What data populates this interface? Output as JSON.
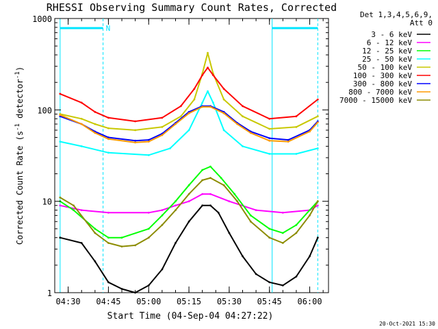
{
  "chart_data": {
    "type": "line",
    "title": "RHESSI Observing Summary Count Rates, Corrected",
    "xlabel": "Start Time (04-Sep-04 04:27:22)",
    "ylabel": "Corrected Count Rate (s",
    "ylabel_mid": " detector",
    "ylabel_end": ")",
    "ylabel_sup": "-1",
    "y_scale": "log",
    "ylim": [
      1,
      1000
    ],
    "xlim": [
      "04:25",
      "06:07"
    ],
    "x_ticks": [
      "04:30",
      "04:45",
      "05:00",
      "05:15",
      "05:30",
      "05:45",
      "06:00"
    ],
    "y_ticks": [
      "1",
      "10",
      "100",
      "1000"
    ],
    "legend_header_1": "Det 1,3,4,5,6,9,",
    "legend_header_2": "Att 0",
    "flag_label": "N",
    "vertical_markers": [
      "04:27",
      "04:43",
      "05:46",
      "06:03"
    ],
    "footer_date": "20-Oct-2021 15:30",
    "series": [
      {
        "name": "3 - 6 keV",
        "color": "#000000",
        "points": [
          [
            "04:27",
            4
          ],
          [
            "04:35",
            3.5
          ],
          [
            "04:40",
            2.2
          ],
          [
            "04:45",
            1.3
          ],
          [
            "04:50",
            1.1
          ],
          [
            "04:55",
            1
          ],
          [
            "05:00",
            1.2
          ],
          [
            "05:05",
            1.8
          ],
          [
            "05:10",
            3.5
          ],
          [
            "05:15",
            6
          ],
          [
            "05:20",
            9
          ],
          [
            "05:23",
            9
          ],
          [
            "05:26",
            7.5
          ],
          [
            "05:30",
            4.5
          ],
          [
            "05:35",
            2.5
          ],
          [
            "05:40",
            1.6
          ],
          [
            "05:45",
            1.3
          ],
          [
            "05:50",
            1.2
          ],
          [
            "05:55",
            1.5
          ],
          [
            "06:00",
            2.5
          ],
          [
            "06:03",
            4
          ]
        ]
      },
      {
        "name": "6 - 12 keV",
        "color": "#ff00ff",
        "points": [
          [
            "04:27",
            9
          ],
          [
            "04:35",
            8
          ],
          [
            "04:45",
            7.5
          ],
          [
            "05:00",
            7.5
          ],
          [
            "05:05",
            8
          ],
          [
            "05:10",
            9
          ],
          [
            "05:15",
            10
          ],
          [
            "05:20",
            12
          ],
          [
            "05:23",
            12
          ],
          [
            "05:30",
            10
          ],
          [
            "05:40",
            8
          ],
          [
            "05:50",
            7.5
          ],
          [
            "06:00",
            8
          ],
          [
            "06:03",
            9
          ]
        ]
      },
      {
        "name": "12 - 25 keV",
        "color": "#00ff00",
        "points": [
          [
            "04:27",
            10
          ],
          [
            "04:32",
            8
          ],
          [
            "04:40",
            5
          ],
          [
            "04:45",
            4
          ],
          [
            "04:50",
            4
          ],
          [
            "05:00",
            5
          ],
          [
            "05:05",
            7
          ],
          [
            "05:10",
            10
          ],
          [
            "05:15",
            15
          ],
          [
            "05:20",
            22
          ],
          [
            "05:23",
            24
          ],
          [
            "05:27",
            18
          ],
          [
            "05:32",
            12
          ],
          [
            "05:38",
            7
          ],
          [
            "05:45",
            5
          ],
          [
            "05:50",
            4.5
          ],
          [
            "05:55",
            5.5
          ],
          [
            "06:00",
            8
          ],
          [
            "06:03",
            10
          ]
        ]
      },
      {
        "name": "25 - 50 keV",
        "color": "#00ffff",
        "points": [
          [
            "04:27",
            45
          ],
          [
            "04:35",
            40
          ],
          [
            "04:45",
            34
          ],
          [
            "05:00",
            32
          ],
          [
            "05:08",
            38
          ],
          [
            "05:15",
            60
          ],
          [
            "05:20",
            120
          ],
          [
            "05:22",
            160
          ],
          [
            "05:24",
            120
          ],
          [
            "05:28",
            60
          ],
          [
            "05:35",
            40
          ],
          [
            "05:45",
            33
          ],
          [
            "05:55",
            33
          ],
          [
            "06:03",
            38
          ]
        ]
      },
      {
        "name": "50 - 100 keV",
        "color": "#c8c800",
        "points": [
          [
            "04:27",
            90
          ],
          [
            "04:35",
            80
          ],
          [
            "04:40",
            70
          ],
          [
            "04:45",
            63
          ],
          [
            "04:55",
            60
          ],
          [
            "05:05",
            65
          ],
          [
            "05:12",
            85
          ],
          [
            "05:17",
            130
          ],
          [
            "05:20",
            250
          ],
          [
            "05:22",
            420
          ],
          [
            "05:24",
            250
          ],
          [
            "05:28",
            130
          ],
          [
            "05:35",
            85
          ],
          [
            "05:45",
            62
          ],
          [
            "05:55",
            65
          ],
          [
            "06:03",
            85
          ]
        ]
      },
      {
        "name": "100 - 300 keV",
        "color": "#ff0000",
        "points": [
          [
            "04:27",
            150
          ],
          [
            "04:35",
            120
          ],
          [
            "04:40",
            95
          ],
          [
            "04:45",
            82
          ],
          [
            "04:55",
            75
          ],
          [
            "05:05",
            82
          ],
          [
            "05:12",
            110
          ],
          [
            "05:17",
            170
          ],
          [
            "05:20",
            240
          ],
          [
            "05:22",
            290
          ],
          [
            "05:24",
            240
          ],
          [
            "05:28",
            170
          ],
          [
            "05:35",
            110
          ],
          [
            "05:45",
            80
          ],
          [
            "05:55",
            85
          ],
          [
            "06:03",
            130
          ]
        ]
      },
      {
        "name": "300 - 800 keV",
        "color": "#0000ff",
        "points": [
          [
            "04:27",
            85
          ],
          [
            "04:35",
            70
          ],
          [
            "04:40",
            58
          ],
          [
            "04:45",
            50
          ],
          [
            "04:55",
            46
          ],
          [
            "05:00",
            47
          ],
          [
            "05:05",
            55
          ],
          [
            "05:10",
            72
          ],
          [
            "05:15",
            95
          ],
          [
            "05:20",
            110
          ],
          [
            "05:23",
            110
          ],
          [
            "05:28",
            95
          ],
          [
            "05:33",
            72
          ],
          [
            "05:38",
            58
          ],
          [
            "05:45",
            49
          ],
          [
            "05:52",
            47
          ],
          [
            "06:00",
            60
          ],
          [
            "06:03",
            75
          ]
        ]
      },
      {
        "name": "800 - 7000 keV",
        "color": "#ff9900",
        "points": [
          [
            "04:27",
            88
          ],
          [
            "04:35",
            70
          ],
          [
            "04:40",
            56
          ],
          [
            "04:45",
            48
          ],
          [
            "04:55",
            44
          ],
          [
            "05:00",
            45
          ],
          [
            "05:05",
            53
          ],
          [
            "05:10",
            70
          ],
          [
            "05:15",
            92
          ],
          [
            "05:20",
            108
          ],
          [
            "05:23",
            108
          ],
          [
            "05:28",
            92
          ],
          [
            "05:33",
            70
          ],
          [
            "05:38",
            56
          ],
          [
            "05:45",
            46
          ],
          [
            "05:52",
            45
          ],
          [
            "06:00",
            58
          ],
          [
            "06:03",
            73
          ]
        ]
      },
      {
        "name": "7000 - 15000 keV",
        "color": "#8c8c00",
        "points": [
          [
            "04:27",
            11
          ],
          [
            "04:32",
            9
          ],
          [
            "04:40",
            4.5
          ],
          [
            "04:45",
            3.5
          ],
          [
            "04:50",
            3.2
          ],
          [
            "04:55",
            3.3
          ],
          [
            "05:00",
            4
          ],
          [
            "05:05",
            5.5
          ],
          [
            "05:10",
            8
          ],
          [
            "05:15",
            12
          ],
          [
            "05:20",
            17
          ],
          [
            "05:23",
            18
          ],
          [
            "05:28",
            15
          ],
          [
            "05:33",
            10
          ],
          [
            "05:38",
            6
          ],
          [
            "05:45",
            4
          ],
          [
            "05:50",
            3.5
          ],
          [
            "05:55",
            4.5
          ],
          [
            "06:00",
            7
          ],
          [
            "06:03",
            10
          ]
        ]
      }
    ]
  }
}
